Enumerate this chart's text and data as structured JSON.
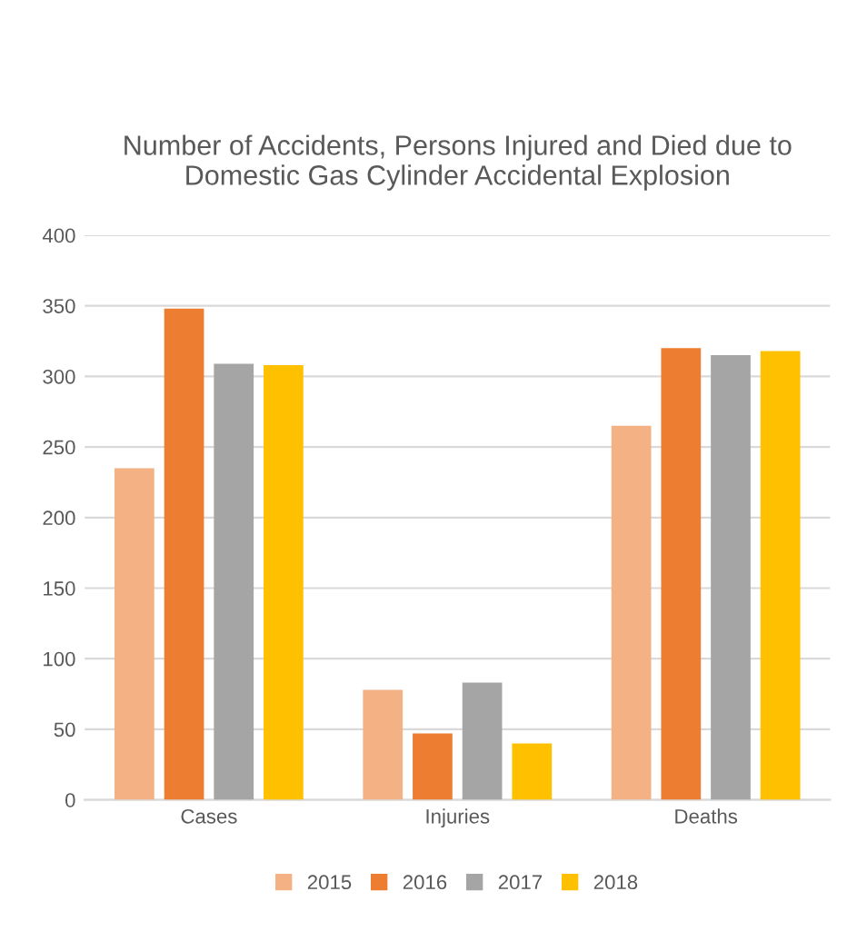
{
  "chart_data": {
    "type": "bar",
    "title": "Number of Accidents, Persons Injured and Died due to\nDomestic Gas Cylinder Accidental Explosion",
    "categories": [
      "Cases",
      "Injuries",
      "Deaths"
    ],
    "series": [
      {
        "name": "2015",
        "color": "#f4b183",
        "values": [
          235,
          78,
          265
        ]
      },
      {
        "name": "2016",
        "color": "#ed7d31",
        "values": [
          348,
          47,
          320
        ]
      },
      {
        "name": "2017",
        "color": "#a5a5a5",
        "values": [
          309,
          83,
          315
        ]
      },
      {
        "name": "2018",
        "color": "#ffc000",
        "values": [
          308,
          40,
          318
        ]
      }
    ],
    "ylim": [
      0,
      400
    ],
    "yticks": [
      0,
      50,
      100,
      150,
      200,
      250,
      300,
      350,
      400
    ],
    "grid": "y",
    "legend": "bottom"
  }
}
